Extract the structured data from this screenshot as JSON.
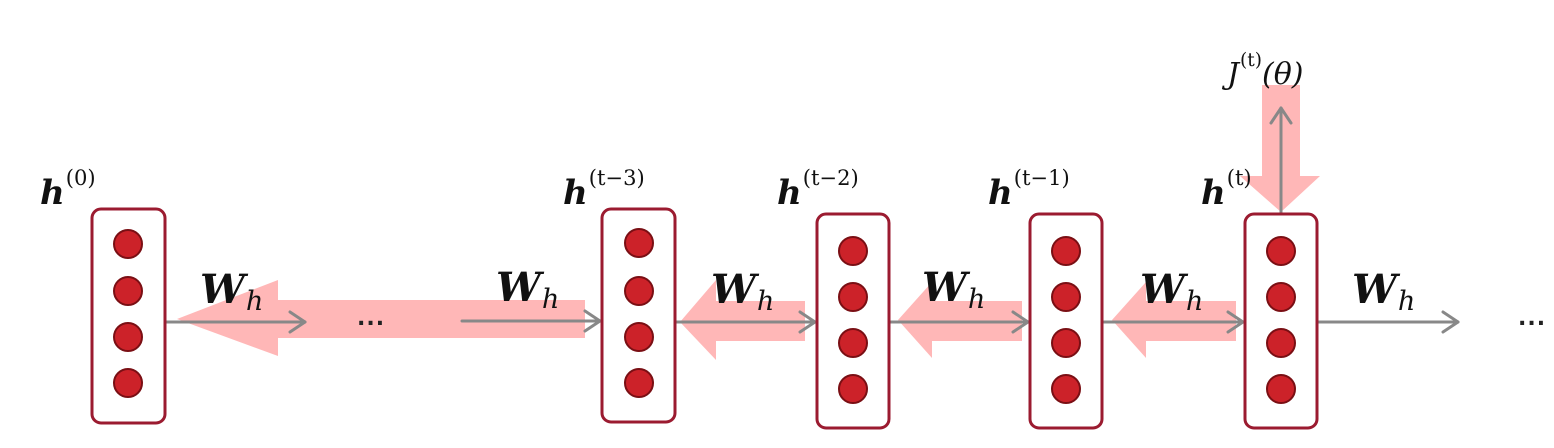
{
  "colors": {
    "cell_border": "#9b1b30",
    "neuron_fill": "#cc2229",
    "neuron_stroke": "#7a0f14",
    "forward_arrow": "#888888",
    "gradient_arrow": "#ffb3b3",
    "text": "#111111"
  },
  "hidden_states": [
    {
      "base": "h",
      "superscript": "(0)"
    },
    {
      "base": "h",
      "superscript": "(t−3)"
    },
    {
      "base": "h",
      "superscript": "(t−2)"
    },
    {
      "base": "h",
      "superscript": "(t−1)"
    },
    {
      "base": "h",
      "superscript": "(t)"
    }
  ],
  "weights": [
    {
      "base": "W",
      "subscript": "h"
    },
    {
      "base": "W",
      "subscript": "h"
    },
    {
      "base": "W",
      "subscript": "h"
    },
    {
      "base": "W",
      "subscript": "h"
    },
    {
      "base": "W",
      "subscript": "h"
    },
    {
      "base": "W",
      "subscript": "h"
    }
  ],
  "loss": {
    "base": "J",
    "superscript": "(t)",
    "argument": "(θ)"
  },
  "ellipsis_middle": "...",
  "ellipsis_right": "...",
  "neurons_per_cell": 4
}
